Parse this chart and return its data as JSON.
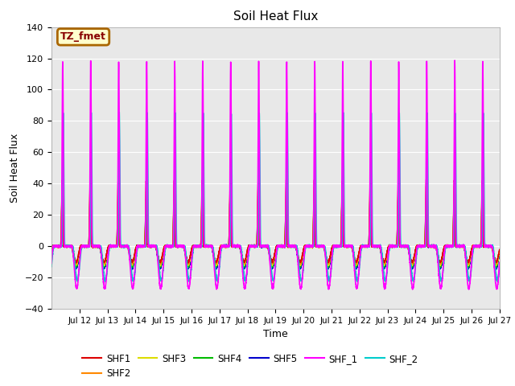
{
  "title": "Soil Heat Flux",
  "xlabel": "Time",
  "ylabel": "Soil Heat Flux",
  "xlim_days": [
    11.0,
    27.0
  ],
  "ylim": [
    -40,
    140
  ],
  "yticks": [
    -40,
    -20,
    0,
    20,
    40,
    60,
    80,
    100,
    120,
    140
  ],
  "xtick_labels": [
    "Jul 12",
    "Jul 13",
    "Jul 14",
    "Jul 15",
    "Jul 16",
    "Jul 17",
    "Jul 18",
    "Jul 19",
    "Jul 20",
    "Jul 21",
    "Jul 22",
    "Jul 23",
    "Jul 24",
    "Jul 25",
    "Jul 26",
    "Jul 27"
  ],
  "xtick_positions": [
    12,
    13,
    14,
    15,
    16,
    17,
    18,
    19,
    20,
    21,
    22,
    23,
    24,
    25,
    26,
    27
  ],
  "series": {
    "SHF1": {
      "color": "#dd0000",
      "lw": 1.0,
      "peak": 42,
      "trough": -10,
      "phase": 0.38
    },
    "SHF2": {
      "color": "#ff8800",
      "lw": 1.0,
      "peak": 38,
      "trough": -11,
      "phase": 0.38
    },
    "SHF3": {
      "color": "#dddd00",
      "lw": 1.0,
      "peak": 35,
      "trough": -12,
      "phase": 0.38
    },
    "SHF4": {
      "color": "#00bb00",
      "lw": 1.0,
      "peak": 33,
      "trough": -13,
      "phase": 0.38
    },
    "SHF5": {
      "color": "#0000cc",
      "lw": 1.2,
      "peak": 30,
      "trough": -14,
      "phase": 0.38
    },
    "SHF_1": {
      "color": "#ff00ff",
      "lw": 1.2,
      "peak": 118,
      "trough": -27,
      "phase": 0.4
    },
    "SHF_2": {
      "color": "#00cccc",
      "lw": 1.2,
      "peak": 85,
      "trough": -22,
      "phase": 0.42
    }
  },
  "bg_color": "#e8e8e8",
  "grid_color": "white",
  "annotation_text": "TZ_fmet",
  "annotation_bg": "#ffffcc",
  "annotation_border": "#aa6600",
  "start_day": 11.0,
  "end_day": 27.0
}
